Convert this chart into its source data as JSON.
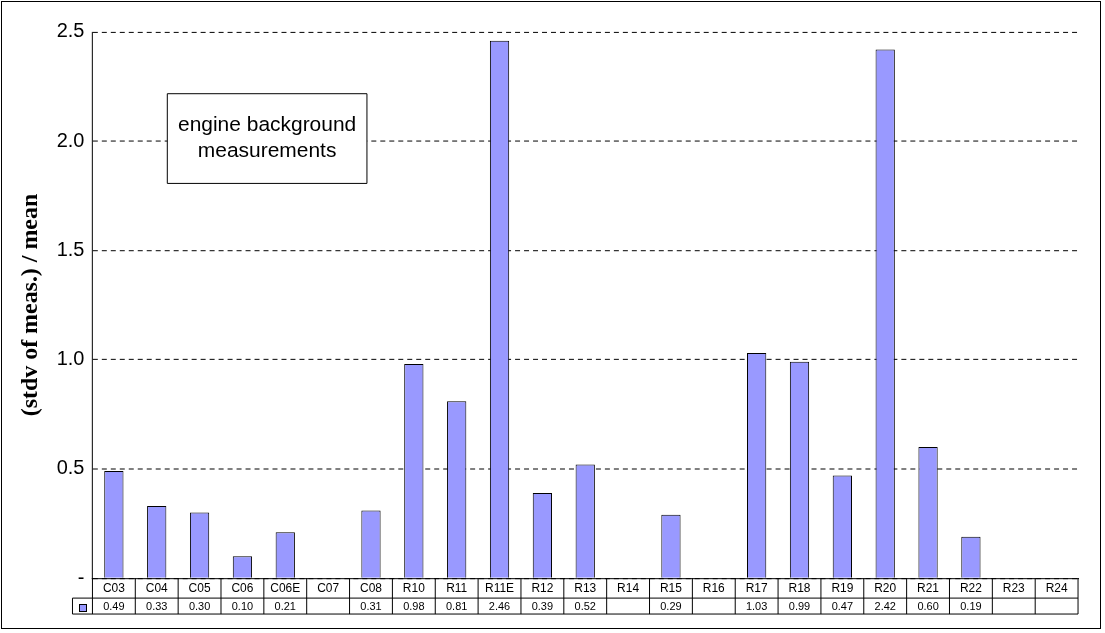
{
  "chart_data": {
    "type": "bar",
    "ylabel": "(stdv of meas.) / mean",
    "categories": [
      "C03",
      "C04",
      "C05",
      "C06",
      "C06E",
      "C07",
      "C08",
      "R10",
      "R11",
      "R11E",
      "R12",
      "R13",
      "R14",
      "R15",
      "R16",
      "R17",
      "R18",
      "R19",
      "R20",
      "R21",
      "R22",
      "R23",
      "R24"
    ],
    "values": [
      0.49,
      0.33,
      0.3,
      0.1,
      0.21,
      null,
      0.31,
      0.98,
      0.81,
      2.46,
      0.39,
      0.52,
      null,
      0.29,
      null,
      1.03,
      0.99,
      0.47,
      2.42,
      0.6,
      0.19,
      null,
      null
    ],
    "value_labels": [
      "0.49",
      "0.33",
      "0.30",
      "0.10",
      "0.21",
      null,
      "0.31",
      "0.98",
      "0.81",
      "2.46",
      "0.39",
      "0.52",
      null,
      "0.29",
      null,
      "1.03",
      "0.99",
      "0.47",
      "2.42",
      "0.60",
      "0.19",
      null,
      null
    ],
    "color": "#9999ff",
    "ylim": [
      0,
      2.5
    ],
    "yticks": [
      {
        "value": 0,
        "label": "-"
      },
      {
        "value": 0.5,
        "label": "0.5"
      },
      {
        "value": 1,
        "label": "1.0"
      },
      {
        "value": 1.5,
        "label": "1.5"
      },
      {
        "value": 2,
        "label": "2.0"
      },
      {
        "value": 2.5,
        "label": "2.5"
      }
    ],
    "grid": "y",
    "line_style": "dashed",
    "annotations": [
      "engine background measurements"
    ]
  }
}
